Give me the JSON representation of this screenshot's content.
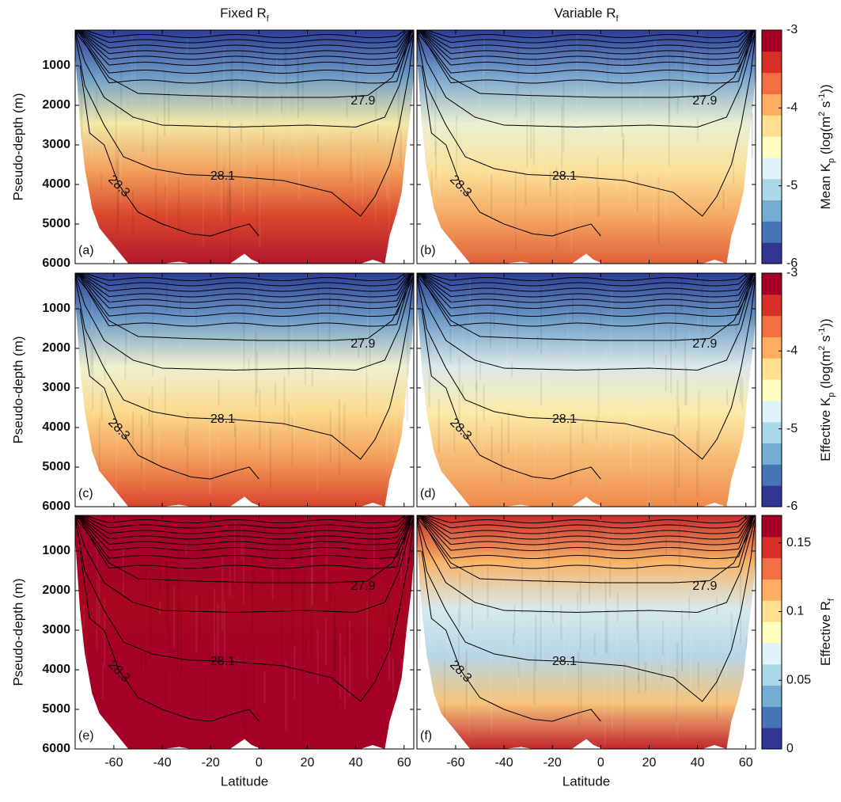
{
  "chart_data": [
    {
      "type": "heatmap",
      "panel_label": "(a)",
      "title": [
        "Fixed R",
        "f"
      ],
      "title_styles": [
        "normal",
        "sub"
      ],
      "ylabel": "Pseudo-depth (m)",
      "xlim": [
        -76,
        64
      ],
      "xticks": [
        -60,
        -40,
        -20,
        0,
        20,
        40,
        60
      ],
      "show_xticklabels": false,
      "ylim": [
        6000,
        100
      ],
      "yticks": [
        1000,
        2000,
        3000,
        4000,
        5000,
        6000
      ],
      "show_yticklabels": true,
      "contour_labels": [
        "27.9",
        "28.1",
        "28.3"
      ],
      "field_colors": [
        "#2c3d95",
        "#6f9dc8",
        "#f3e8a8",
        "#f2a05c",
        "#d9452d",
        "#b2182b"
      ]
    },
    {
      "type": "heatmap",
      "panel_label": "(b)",
      "title": [
        "Variable R",
        "f"
      ],
      "title_styles": [
        "normal",
        "sub"
      ],
      "xlim": [
        -76,
        64
      ],
      "xticks": [
        -60,
        -40,
        -20,
        0,
        20,
        40,
        60
      ],
      "show_xticklabels": false,
      "ylim": [
        6000,
        100
      ],
      "yticks": [
        1000,
        2000,
        3000,
        4000,
        5000,
        6000
      ],
      "show_yticklabels": false,
      "contour_labels": [
        "27.9",
        "28.1",
        "28.3"
      ],
      "field_colors": [
        "#2c3d95",
        "#7aa6cf",
        "#e9efd2",
        "#fbe19a",
        "#f4a862",
        "#e0603a"
      ],
      "colorbar": {
        "label": [
          "Mean K",
          "p",
          " (log(m",
          "2",
          " s",
          "-1",
          "))"
        ],
        "label_styles": [
          "normal",
          "sub",
          "normal",
          "sup",
          "normal",
          "sup",
          "normal"
        ],
        "lim": [
          -6,
          -3
        ],
        "ticks": [
          -6,
          -5,
          -4,
          -3
        ],
        "colors": [
          "#313695",
          "#4575b4",
          "#74add1",
          "#abd9e9",
          "#e0f3f8",
          "#ffffbf",
          "#fee090",
          "#fdae61",
          "#f46d43",
          "#d73027",
          "#a50026"
        ]
      }
    },
    {
      "type": "heatmap",
      "panel_label": "(c)",
      "ylabel": "Pseudo-depth (m)",
      "xlim": [
        -76,
        64
      ],
      "xticks": [
        -60,
        -40,
        -20,
        0,
        20,
        40,
        60
      ],
      "show_xticklabels": false,
      "ylim": [
        6000,
        100
      ],
      "yticks": [
        1000,
        2000,
        3000,
        4000,
        5000,
        6000
      ],
      "show_yticklabels": true,
      "contour_labels": [
        "27.9",
        "28.1",
        "28.3"
      ],
      "field_colors": [
        "#2c3d95",
        "#6f9dc8",
        "#eef0cf",
        "#fbd98c",
        "#f29a58",
        "#d9452d"
      ]
    },
    {
      "type": "heatmap",
      "panel_label": "(d)",
      "xlim": [
        -76,
        64
      ],
      "xticks": [
        -60,
        -40,
        -20,
        0,
        20,
        40,
        60
      ],
      "show_xticklabels": false,
      "ylim": [
        6000,
        100
      ],
      "yticks": [
        1000,
        2000,
        3000,
        4000,
        5000,
        6000
      ],
      "show_yticklabels": false,
      "contour_labels": [
        "27.9",
        "28.1",
        "28.3"
      ],
      "field_colors": [
        "#2c3d95",
        "#6f9dc8",
        "#dbe9ea",
        "#fbeaa6",
        "#f6b872",
        "#ee8a4e"
      ],
      "colorbar": {
        "label": [
          "Effective K",
          "p",
          " (log(m",
          "2",
          " s",
          "-1",
          "))"
        ],
        "label_styles": [
          "normal",
          "sub",
          "normal",
          "sup",
          "normal",
          "sup",
          "normal"
        ],
        "lim": [
          -6,
          -3
        ],
        "ticks": [
          -6,
          -5,
          -4,
          -3
        ],
        "colors": [
          "#313695",
          "#4575b4",
          "#74add1",
          "#abd9e9",
          "#e0f3f8",
          "#ffffbf",
          "#fee090",
          "#fdae61",
          "#f46d43",
          "#d73027",
          "#a50026"
        ]
      }
    },
    {
      "type": "heatmap",
      "panel_label": "(e)",
      "ylabel": "Pseudo-depth (m)",
      "xlabel": "Latitude",
      "xlim": [
        -76,
        64
      ],
      "xticks": [
        -60,
        -40,
        -20,
        0,
        20,
        40,
        60
      ],
      "show_xticklabels": true,
      "ylim": [
        6000,
        100
      ],
      "yticks": [
        1000,
        2000,
        3000,
        4000,
        5000,
        6000
      ],
      "show_yticklabels": true,
      "contour_labels": [
        "27.9",
        "28.1",
        "28.3"
      ],
      "field_colors": [
        "#a50026",
        "#a50026",
        "#a8071f",
        "#a50026",
        "#a50026",
        "#a50026"
      ]
    },
    {
      "type": "heatmap",
      "panel_label": "(f)",
      "xlabel": "Latitude",
      "xlim": [
        -76,
        64
      ],
      "xticks": [
        -60,
        -40,
        -20,
        0,
        20,
        40,
        60
      ],
      "show_xticklabels": true,
      "ylim": [
        6000,
        100
      ],
      "yticks": [
        1000,
        2000,
        3000,
        4000,
        5000,
        6000
      ],
      "show_yticklabels": false,
      "contour_labels": [
        "27.9",
        "28.1",
        "28.3"
      ],
      "field_colors": [
        "#c62a2a",
        "#f7b467",
        "#d7e9ee",
        "#b7d6e6",
        "#f6c57d",
        "#c2262c"
      ],
      "colorbar": {
        "label": [
          "Effective R",
          "f"
        ],
        "label_styles": [
          "normal",
          "sub"
        ],
        "lim": [
          0,
          0.17
        ],
        "ticks": [
          0,
          0.05,
          0.1,
          0.15
        ],
        "colors": [
          "#313695",
          "#4575b4",
          "#74add1",
          "#abd9e9",
          "#e0f3f8",
          "#ffffbf",
          "#fee090",
          "#fdae61",
          "#f46d43",
          "#d73027",
          "#a50026"
        ]
      }
    }
  ]
}
